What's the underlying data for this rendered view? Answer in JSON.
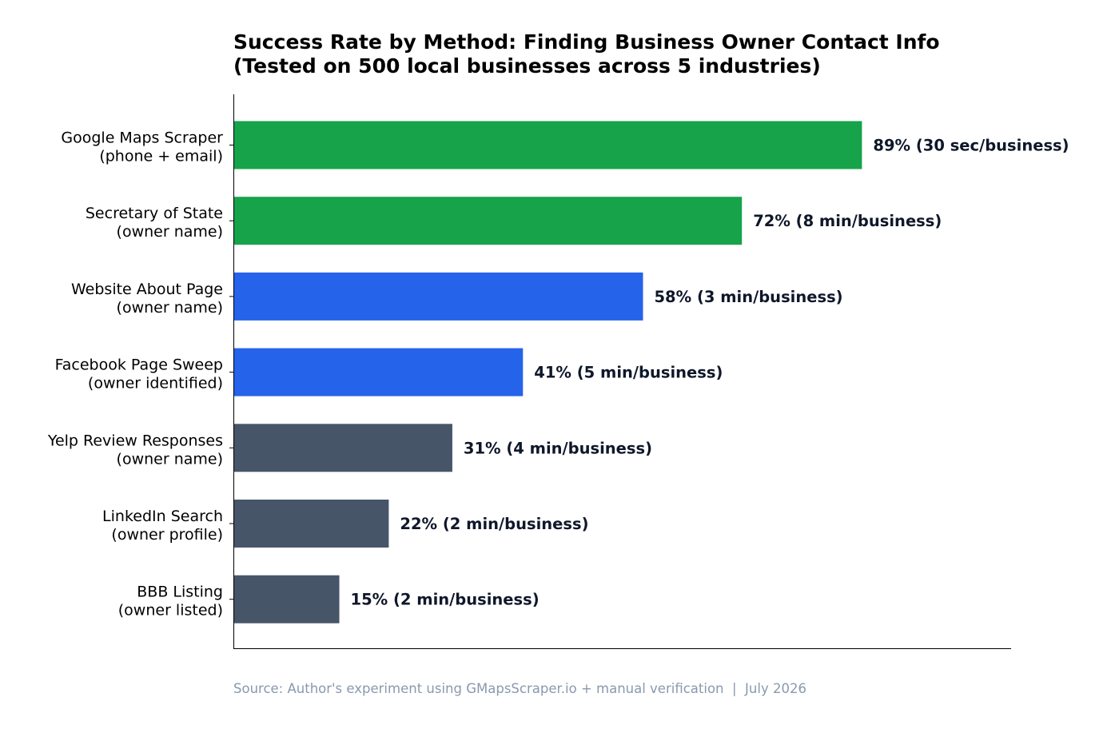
{
  "chart_data": {
    "type": "bar",
    "orientation": "horizontal",
    "title": [
      "Success Rate by Method: Finding Business Owner Contact Info",
      "(Tested on 500 local businesses across 5 industries)"
    ],
    "categories": [
      [
        "Google Maps Scraper",
        "(phone + email)"
      ],
      [
        "Secretary of State",
        "(owner name)"
      ],
      [
        "Website About Page",
        "(owner name)"
      ],
      [
        "Facebook Page Sweep",
        "(owner identified)"
      ],
      [
        "Yelp Review Responses",
        "(owner name)"
      ],
      [
        "LinkedIn Search",
        "(owner profile)"
      ],
      [
        "BBB Listing",
        "(owner listed)"
      ]
    ],
    "values": [
      89,
      72,
      58,
      41,
      31,
      22,
      15
    ],
    "data_labels": [
      "89%  (30 sec/business)",
      "72%  (8 min/business)",
      "58%  (3 min/business)",
      "41%  (5 min/business)",
      "31%  (4 min/business)",
      "22%  (2 min/business)",
      "15%  (2 min/business)"
    ],
    "bar_colors": [
      "#16a34a",
      "#16a34a",
      "#2563eb",
      "#2563eb",
      "#475569",
      "#475569",
      "#475569"
    ],
    "xlim": [
      0,
      110
    ],
    "xticks_visible": false,
    "grid": false,
    "legend": "none",
    "source": "Source: Author's experiment using GMapsScraper.io + manual verification  |  July 2026"
  }
}
